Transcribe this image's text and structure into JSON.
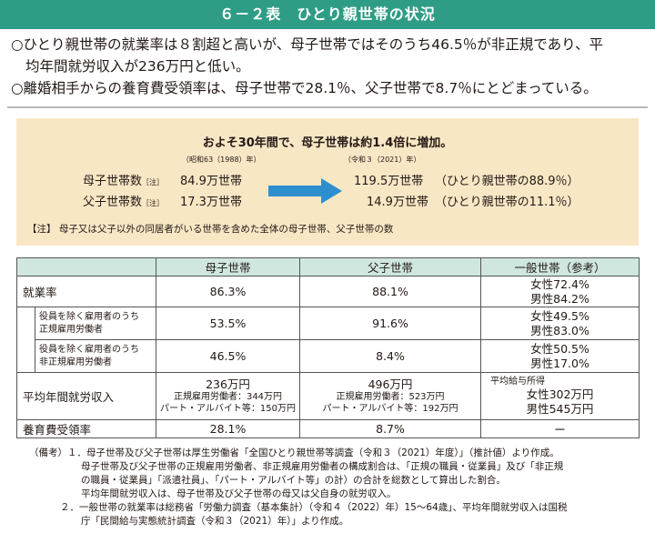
{
  "title": "６－２表　ひとり親世帯の状況",
  "summary": [
    "○ひとり親世帯の就業率は８割超と高いが、母子世帯ではそのうち46.5％が非正規であり、平",
    "均年間就労収入が236万円と低い。",
    "○離婚相手からの養育費受領率は、母子世帯で28.1％、父子世帯で8.7％にとどまっている。"
  ],
  "box": {
    "headline": "およそ30年間で、母子世帯は約1.4倍に増加。",
    "year_from": "（昭和63（1988）年）",
    "year_to": "（令和３（2021）年）",
    "mother_label": "母子世帯数",
    "father_label": "父子世帯数",
    "note_mark": "［注］",
    "mother_1988": "84.9万世帯",
    "father_1988": "17.3万世帯",
    "mother_2021": "119.5万世帯",
    "father_2021": "14.9万世帯",
    "mother_share": "（ひとり親世帯の88.9％）",
    "father_share": "（ひとり親世帯の11.1％）",
    "note": "【注】 母子又は父子以外の同居者がいる世帯を含めた全体の母子世帯、父子世帯の数"
  },
  "table": {
    "headers": [
      "",
      "母子世帯",
      "父子世帯",
      "一般世帯（参考）"
    ],
    "employment": {
      "label": "就業率",
      "mother": "86.3%",
      "father": "88.1%",
      "general_f": "女性72.4%",
      "general_m": "男性84.2%"
    },
    "regular": {
      "label1": "役員を除く雇用者のうち",
      "label2": "正規雇用労働者",
      "mother": "53.5%",
      "father": "91.6%",
      "general_f": "女性49.5%",
      "general_m": "男性83.0%"
    },
    "nonregular": {
      "label1": "役員を除く雇用者のうち",
      "label2": "非正規雇用労働者",
      "mother": "46.5%",
      "father": "8.4%",
      "general_f": "女性50.5%",
      "general_m": "男性17.0%"
    },
    "income": {
      "label": "平均年間就労収入",
      "mother": "236万円",
      "mother_reg": "正規雇用労働者：344万円",
      "mother_part": "パート・アルバイト等：150万円",
      "father": "496万円",
      "father_reg": "正規雇用労働者：523万円",
      "father_part": "パート・アルバイト等：192万円",
      "general_title": "平均給与所得",
      "general_f": "女性302万円",
      "general_m": "男性545万円"
    },
    "support": {
      "label": "養育費受領率",
      "mother": "28.1%",
      "father": "8.7%",
      "general": "ー"
    }
  },
  "notes": [
    "（備考）１．母子世帯及び父子世帯は厚生労働省「全国ひとり親世帯等調査（令和３（2021）年度）」（推計値）より作成。",
    "母子世帯及び父子世帯の正規雇用労働者、非正規雇用労働者の構成割合は、「正規の職員・従業員」及び「非正規",
    "の職員・従業員」「派遣社員」、「パート・アルバイト等」の計）の合計を総数として算出した割合。",
    "平均年間就労収入は、母子世帯及び父子世帯の母又は父自身の就労収入。",
    "２．一般世帯の就業率は総務省「労働力調査（基本集計）（令和４（2022）年）15～64歳」、平均年間就労収入は国税",
    "庁「民間給与実態統計調査（令和３（2021）年）」より作成。"
  ],
  "colors": {
    "title_bg": "#2f9d86",
    "box_bg": "#f8e7c5",
    "header_bg": "#cfe7df",
    "arrow": "#2e8fcf"
  }
}
